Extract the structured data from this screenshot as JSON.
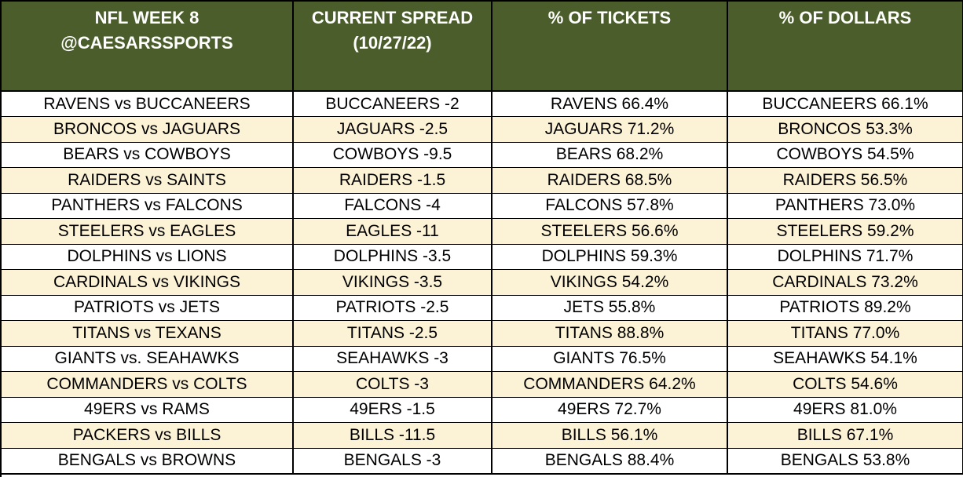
{
  "header": {
    "col1": [
      "NFL WEEK 8",
      "@CAESARSSPORTS"
    ],
    "col2": [
      "CURRENT SPREAD",
      "(10/27/22)"
    ],
    "col3": [
      "% OF TICKETS"
    ],
    "col4": [
      "% OF DOLLARS"
    ]
  },
  "rows": [
    {
      "matchup": "RAVENS vs BUCCANEERS",
      "spread": "BUCCANEERS -2",
      "tickets": "RAVENS 66.4%",
      "dollars": "BUCCANEERS 66.1%"
    },
    {
      "matchup": "BRONCOS vs JAGUARS",
      "spread": "JAGUARS -2.5",
      "tickets": "JAGUARS 71.2%",
      "dollars": "BRONCOS 53.3%"
    },
    {
      "matchup": "BEARS vs COWBOYS",
      "spread": "COWBOYS -9.5",
      "tickets": "BEARS 68.2%",
      "dollars": "COWBOYS 54.5%"
    },
    {
      "matchup": "RAIDERS vs SAINTS",
      "spread": "RAIDERS -1.5",
      "tickets": "RAIDERS 68.5%",
      "dollars": "RAIDERS 56.5%"
    },
    {
      "matchup": "PANTHERS vs FALCONS",
      "spread": "FALCONS -4",
      "tickets": "FALCONS 57.8%",
      "dollars": "PANTHERS 73.0%"
    },
    {
      "matchup": "STEELERS vs EAGLES",
      "spread": "EAGLES -11",
      "tickets": "STEELERS 56.6%",
      "dollars": "STEELERS 59.2%"
    },
    {
      "matchup": "DOLPHINS vs LIONS",
      "spread": "DOLPHINS -3.5",
      "tickets": "DOLPHINS 59.3%",
      "dollars": "DOLPHINS 71.7%"
    },
    {
      "matchup": "CARDINALS vs VIKINGS",
      "spread": "VIKINGS -3.5",
      "tickets": "VIKINGS 54.2%",
      "dollars": "CARDINALS 73.2%"
    },
    {
      "matchup": "PATRIOTS vs JETS",
      "spread": "PATRIOTS -2.5",
      "tickets": "JETS 55.8%",
      "dollars": "PATRIOTS 89.2%"
    },
    {
      "matchup": "TITANS vs TEXANS",
      "spread": "TITANS -2.5",
      "tickets": "TITANS 88.8%",
      "dollars": "TITANS 77.0%"
    },
    {
      "matchup": "GIANTS vs. SEAHAWKS",
      "spread": "SEAHAWKS -3",
      "tickets": "GIANTS 76.5%",
      "dollars": "SEAHAWKS 54.1%"
    },
    {
      "matchup": "COMMANDERS vs COLTS",
      "spread": "COLTS -3",
      "tickets": "COMMANDERS 64.2%",
      "dollars": "COLTS 54.6%"
    },
    {
      "matchup": "49ERS vs RAMS",
      "spread": "49ERS -1.5",
      "tickets": "49ERS 72.7%",
      "dollars": "49ERS 81.0%"
    },
    {
      "matchup": "PACKERS vs BILLS",
      "spread": "BILLS -11.5",
      "tickets": "BILLS 56.1%",
      "dollars": "BILLS 67.1%"
    },
    {
      "matchup": "BENGALS vs BROWNS",
      "spread": "BENGALS -3",
      "tickets": "BENGALS 88.4%",
      "dollars": "BENGALS 53.8%"
    }
  ],
  "colors": {
    "header_bg": "#4a5d2b",
    "header_text": "#ffffff",
    "stripe": "#fcf2d6",
    "row_bg": "#ffffff",
    "grid": "#000000"
  }
}
